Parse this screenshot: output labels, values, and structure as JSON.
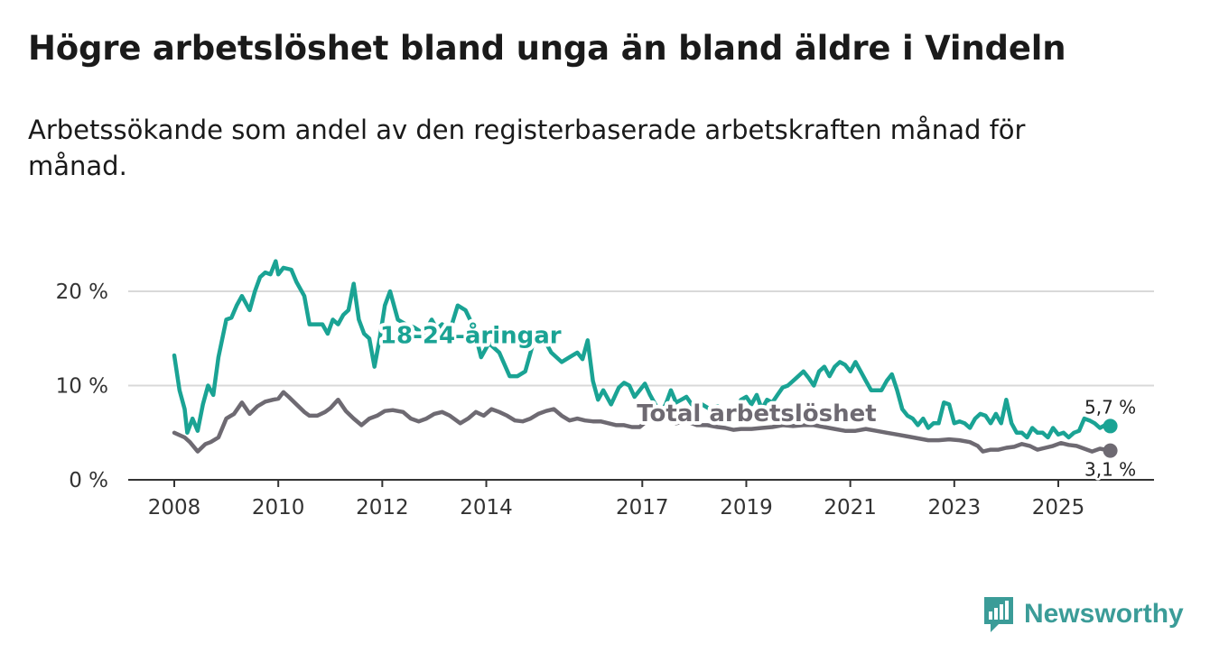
{
  "header": {
    "title": "Högre arbetslöshet bland unga än bland äldre i Vindeln",
    "subtitle": "Arbetssökande som andel av den registerbaserade arbetskraften månad för månad."
  },
  "brand": {
    "name": "Newsworthy",
    "color": "#3b9c98",
    "icon": "bar-chart-logo-icon"
  },
  "chart_data": {
    "type": "line",
    "title": "Högre arbetslöshet bland unga än bland äldre i Vindeln",
    "subtitle": "Arbetssökande som andel av den registerbaserade arbetskraften månad för månad.",
    "xlabel": "",
    "ylabel": "",
    "xlim": [
      2007.6,
      2026.3
    ],
    "ylim": [
      0,
      23
    ],
    "y_ticks": [
      0,
      10,
      20
    ],
    "y_tick_labels": [
      "0 %",
      "10 %",
      "20 %"
    ],
    "x_ticks": [
      2008,
      2010,
      2012,
      2014,
      2017,
      2019,
      2021,
      2023,
      2025
    ],
    "x_tick_labels": [
      "2008",
      "2010",
      "2012",
      "2014",
      "2017",
      "2019",
      "2021",
      "2023",
      "2025"
    ],
    "grid": "horizontal",
    "series": [
      {
        "name": "18-24-åringar",
        "color": "#1aa394",
        "end_label": "5,7 %",
        "x": [
          2008.0,
          2008.1,
          2008.2,
          2008.25,
          2008.35,
          2008.45,
          2008.55,
          2008.65,
          2008.75,
          2008.85,
          2009.0,
          2009.1,
          2009.2,
          2009.3,
          2009.45,
          2009.55,
          2009.65,
          2009.75,
          2009.85,
          2009.95,
          2010.0,
          2010.1,
          2010.25,
          2010.35,
          2010.5,
          2010.6,
          2010.75,
          2010.85,
          2010.95,
          2011.05,
          2011.15,
          2011.25,
          2011.35,
          2011.45,
          2011.55,
          2011.65,
          2011.75,
          2011.85,
          2011.95,
          2012.05,
          2012.15,
          2012.3,
          2012.45,
          2012.6,
          2012.8,
          2012.95,
          2013.05,
          2013.15,
          2013.3,
          2013.45,
          2013.6,
          2013.75,
          2013.9,
          2014.05,
          2014.25,
          2014.45,
          2014.6,
          2014.75,
          2014.9,
          2015.05,
          2015.25,
          2015.45,
          2015.6,
          2015.75,
          2015.85,
          2015.95,
          2016.05,
          2016.15,
          2016.25,
          2016.4,
          2016.55,
          2016.65,
          2016.75,
          2016.85,
          2016.95,
          2017.05,
          2017.15,
          2017.25,
          2017.35,
          2017.45,
          2017.55,
          2017.65,
          2017.75,
          2017.85,
          2017.95,
          2018.05,
          2018.15,
          2018.3,
          2018.45,
          2018.6,
          2018.75,
          2018.9,
          2019.0,
          2019.1,
          2019.2,
          2019.3,
          2019.4,
          2019.5,
          2019.6,
          2019.7,
          2019.8,
          2019.9,
          2020.0,
          2020.1,
          2020.2,
          2020.3,
          2020.4,
          2020.5,
          2020.6,
          2020.7,
          2020.8,
          2020.9,
          2021.0,
          2021.1,
          2021.2,
          2021.3,
          2021.4,
          2021.5,
          2021.6,
          2021.7,
          2021.8,
          2021.9,
          2022.0,
          2022.1,
          2022.2,
          2022.3,
          2022.4,
          2022.5,
          2022.6,
          2022.7,
          2022.8,
          2022.9,
          2023.0,
          2023.1,
          2023.2,
          2023.3,
          2023.4,
          2023.5,
          2023.6,
          2023.7,
          2023.8,
          2023.9,
          2024.0,
          2024.1,
          2024.2,
          2024.3,
          2024.4,
          2024.5,
          2024.6,
          2024.7,
          2024.8,
          2024.9,
          2025.0,
          2025.1,
          2025.2,
          2025.3,
          2025.4,
          2025.5,
          2025.6,
          2025.7,
          2025.8,
          2025.9,
          2026.0
        ],
        "y": [
          13.2,
          9.5,
          7.5,
          5.0,
          6.5,
          5.2,
          8.0,
          10.0,
          9.0,
          13.0,
          17.0,
          17.2,
          18.5,
          19.5,
          18.0,
          20.0,
          21.5,
          22.0,
          21.8,
          23.2,
          21.8,
          22.5,
          22.3,
          21.0,
          19.5,
          16.5,
          16.5,
          16.5,
          15.5,
          17.0,
          16.5,
          17.5,
          18.0,
          20.8,
          17.0,
          15.5,
          15.0,
          12.0,
          15.0,
          18.5,
          20.0,
          17.0,
          16.5,
          16.2,
          15.5,
          17.0,
          16.0,
          16.5,
          15.8,
          18.5,
          18.0,
          16.3,
          13.0,
          14.5,
          13.5,
          11.0,
          11.0,
          11.5,
          14.5,
          15.5,
          13.5,
          12.5,
          13.0,
          13.5,
          12.8,
          14.8,
          10.5,
          8.5,
          9.5,
          8.0,
          9.8,
          10.3,
          10.0,
          8.8,
          9.5,
          10.2,
          9.0,
          8.0,
          7.0,
          8.0,
          9.5,
          8.2,
          8.5,
          8.8,
          8.0,
          7.5,
          8.0,
          7.5,
          7.8,
          7.0,
          7.2,
          8.5,
          8.8,
          8.0,
          9.0,
          7.5,
          8.5,
          8.2,
          9.0,
          9.8,
          10.0,
          10.5,
          11.0,
          11.5,
          10.8,
          10.0,
          11.5,
          12.0,
          11.0,
          12.0,
          12.5,
          12.2,
          11.5,
          12.5,
          11.5,
          10.5,
          9.5,
          9.5,
          9.5,
          10.5,
          11.2,
          9.5,
          7.5,
          6.8,
          6.5,
          5.8,
          6.5,
          5.5,
          6.0,
          6.0,
          8.2,
          8.0,
          6.0,
          6.2,
          6.0,
          5.5,
          6.5,
          7.0,
          6.8,
          6.0,
          7.0,
          6.0,
          8.5,
          6.0,
          5.0,
          5.0,
          4.5,
          5.5,
          5.0,
          5.0,
          4.5,
          5.5,
          4.8,
          5.0,
          4.5,
          5.0,
          5.2,
          6.5,
          6.3,
          6.0,
          5.5,
          5.8,
          5.7
        ]
      },
      {
        "name": "Total arbetslöshet",
        "color": "#6e6a72",
        "end_label": "3,1 %",
        "x": [
          2008.0,
          2008.2,
          2008.3,
          2008.45,
          2008.6,
          2008.7,
          2008.85,
          2009.0,
          2009.15,
          2009.3,
          2009.45,
          2009.6,
          2009.75,
          2009.9,
          2010.0,
          2010.1,
          2010.2,
          2010.35,
          2010.5,
          2010.6,
          2010.75,
          2010.9,
          2011.0,
          2011.15,
          2011.3,
          2011.45,
          2011.6,
          2011.75,
          2011.9,
          2012.05,
          2012.2,
          2012.4,
          2012.55,
          2012.7,
          2012.85,
          2013.0,
          2013.15,
          2013.3,
          2013.5,
          2013.65,
          2013.8,
          2013.95,
          2014.1,
          2014.25,
          2014.4,
          2014.55,
          2014.7,
          2014.85,
          2015.0,
          2015.15,
          2015.3,
          2015.45,
          2015.6,
          2015.75,
          2015.9,
          2016.05,
          2016.2,
          2016.35,
          2016.5,
          2016.65,
          2016.8,
          2016.95,
          2017.1,
          2017.25,
          2017.45,
          2017.65,
          2017.85,
          2018.05,
          2018.25,
          2018.45,
          2018.6,
          2018.75,
          2018.9,
          2019.1,
          2019.3,
          2019.5,
          2019.7,
          2019.9,
          2020.1,
          2020.3,
          2020.5,
          2020.7,
          2020.9,
          2021.1,
          2021.3,
          2021.5,
          2021.7,
          2021.9,
          2022.1,
          2022.3,
          2022.5,
          2022.7,
          2022.9,
          2023.1,
          2023.3,
          2023.45,
          2023.55,
          2023.7,
          2023.85,
          2024.0,
          2024.15,
          2024.3,
          2024.45,
          2024.6,
          2024.75,
          2024.9,
          2025.05,
          2025.2,
          2025.35,
          2025.5,
          2025.65,
          2025.8,
          2025.9,
          2026.0
        ],
        "y": [
          5.0,
          4.5,
          4.0,
          3.0,
          3.8,
          4.0,
          4.5,
          6.5,
          7.0,
          8.2,
          7.0,
          7.8,
          8.3,
          8.5,
          8.6,
          9.3,
          8.8,
          8.0,
          7.2,
          6.8,
          6.8,
          7.2,
          7.6,
          8.5,
          7.3,
          6.5,
          5.8,
          6.5,
          6.8,
          7.3,
          7.4,
          7.2,
          6.5,
          6.2,
          6.5,
          7.0,
          7.2,
          6.8,
          6.0,
          6.5,
          7.2,
          6.8,
          7.5,
          7.2,
          6.8,
          6.3,
          6.2,
          6.5,
          7.0,
          7.3,
          7.5,
          6.8,
          6.3,
          6.5,
          6.3,
          6.2,
          6.2,
          6.0,
          5.8,
          5.8,
          5.6,
          5.6,
          6.3,
          6.8,
          6.6,
          6.0,
          6.2,
          5.8,
          5.8,
          5.6,
          5.5,
          5.3,
          5.4,
          5.4,
          5.5,
          5.6,
          5.8,
          5.7,
          5.8,
          5.8,
          5.6,
          5.4,
          5.2,
          5.2,
          5.4,
          5.2,
          5.0,
          4.8,
          4.6,
          4.4,
          4.2,
          4.2,
          4.3,
          4.2,
          4.0,
          3.6,
          3.0,
          3.2,
          3.2,
          3.4,
          3.5,
          3.8,
          3.6,
          3.2,
          3.4,
          3.6,
          3.9,
          3.7,
          3.6,
          3.3,
          3.0,
          3.3,
          3.2,
          3.1
        ]
      }
    ]
  }
}
